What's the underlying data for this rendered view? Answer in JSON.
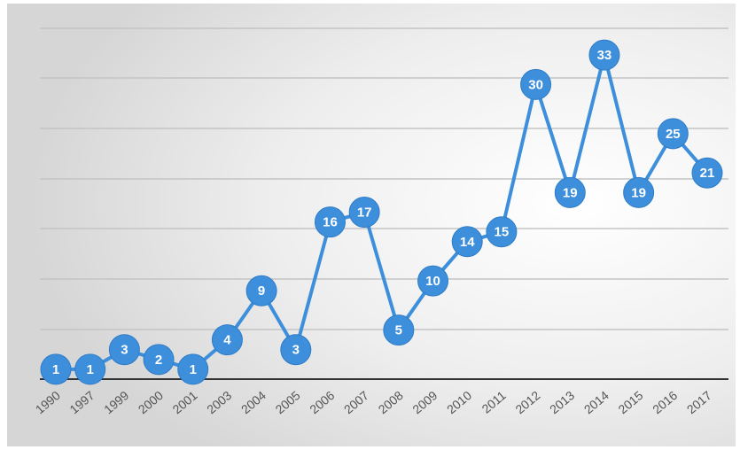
{
  "chart_data": {
    "type": "line",
    "title": "",
    "xlabel": "",
    "ylabel": "",
    "categories": [
      "1990",
      "1997",
      "1999",
      "2000",
      "2001",
      "2003",
      "2004",
      "2005",
      "2006",
      "2007",
      "2008",
      "2009",
      "2010",
      "2011",
      "2012",
      "2013",
      "2014",
      "2015",
      "2016",
      "2017"
    ],
    "series": [
      {
        "values": [
          1,
          1,
          3,
          2,
          1,
          4,
          9,
          3,
          16,
          17,
          5,
          10,
          14,
          15,
          30,
          19,
          33,
          19,
          25,
          21
        ],
        "color": "#3d8fdc"
      }
    ],
    "ylim": [
      0,
      35
    ],
    "grid": true,
    "legend": "none",
    "data_labels": true
  }
}
